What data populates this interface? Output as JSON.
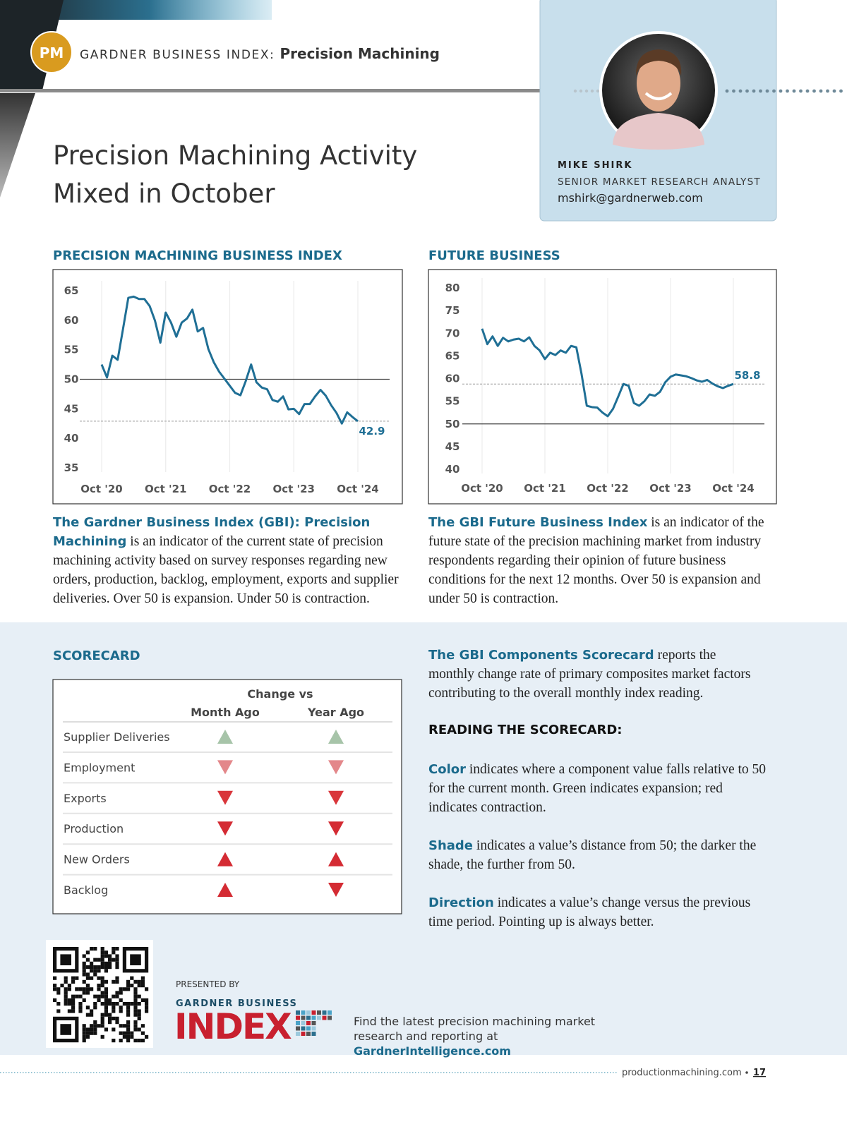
{
  "header": {
    "badge": "PM",
    "series_label": "GARDNER BUSINESS INDEX:",
    "topic": "Precision Machining"
  },
  "title": "Precision Machining Activity Mixed in October",
  "author": {
    "name": "MIKE SHIRK",
    "role": "SENIOR MARKET RESEARCH ANALYST",
    "email": "mshirk@gardnerweb.com"
  },
  "chart_data": [
    {
      "type": "line",
      "title": "PRECISION MACHINING BUSINESS INDEX",
      "categories": [
        "Oct '20",
        null,
        null,
        null,
        null,
        null,
        null,
        null,
        null,
        null,
        null,
        null,
        "Oct '21",
        null,
        null,
        null,
        null,
        null,
        null,
        null,
        null,
        null,
        null,
        null,
        "Oct '22",
        null,
        null,
        null,
        null,
        null,
        null,
        null,
        null,
        null,
        null,
        null,
        "Oct '23",
        null,
        null,
        null,
        null,
        null,
        null,
        null,
        null,
        null,
        null,
        null,
        "Oct '24"
      ],
      "series": [
        {
          "color": "#1f6f95",
          "values": [
            52.5,
            50.3,
            54,
            53.3,
            58.5,
            63.8,
            64,
            63.6,
            63.6,
            62.4,
            59.9,
            56.2,
            61.3,
            59.6,
            57.2,
            59.6,
            60.3,
            61.8,
            58.1,
            58.7,
            55.1,
            52.9,
            51.3,
            50.1,
            48.9,
            47.7,
            47.3,
            49.7,
            52.5,
            49.5,
            48.6,
            48.3,
            46.5,
            46.2,
            47.1,
            44.9,
            45,
            44.1,
            45.8,
            45.8,
            47.1,
            48.2,
            47.2,
            45.6,
            44.3,
            42.5,
            44.4,
            43.6,
            42.9
          ]
        }
      ],
      "ylim": [
        35,
        65
      ],
      "yticks": [
        35,
        40,
        45,
        50,
        55,
        60,
        65
      ],
      "reference_line": 50,
      "label_last": true,
      "grid": true
    },
    {
      "type": "line",
      "title": "FUTURE BUSINESS",
      "categories": [
        "Oct '20",
        null,
        null,
        null,
        null,
        null,
        null,
        null,
        null,
        null,
        null,
        null,
        "Oct '21",
        null,
        null,
        null,
        null,
        null,
        null,
        null,
        null,
        null,
        null,
        null,
        "Oct '22",
        null,
        null,
        null,
        null,
        null,
        null,
        null,
        null,
        null,
        null,
        null,
        "Oct '23",
        null,
        null,
        null,
        null,
        null,
        null,
        null,
        null,
        null,
        null,
        null,
        "Oct '24"
      ],
      "series": [
        {
          "color": "#1f6f95",
          "values": [
            71,
            67.6,
            69.3,
            67.2,
            69,
            68.2,
            68.6,
            68.8,
            68.2,
            69.1,
            67.2,
            66.2,
            64.3,
            65.7,
            65.2,
            66.2,
            65.7,
            67.2,
            66.9,
            61,
            54,
            53.7,
            53.6,
            52.5,
            51.7,
            53.3,
            56,
            58.8,
            58.4,
            54.6,
            54,
            55,
            56.5,
            56.2,
            57.1,
            59.2,
            60.4,
            60.9,
            60.7,
            60.5,
            60.1,
            59.6,
            59.3,
            59.7,
            58.9,
            58.3,
            57.9,
            58.4,
            58.8
          ]
        }
      ],
      "ylim": [
        40,
        80
      ],
      "yticks": [
        40,
        45,
        50,
        55,
        60,
        65,
        70,
        75,
        80
      ],
      "reference_line": 50,
      "label_last": true,
      "grid": true
    }
  ],
  "descriptions": [
    {
      "lead": "The Gardner Business Index (GBI): Precision Machining",
      "text": "is an indicator of the current state of precision machining activity based on survey responses regarding new orders, production, backlog, employment, exports and supplier deliveries. Over 50 is expansion. Under 50 is contraction."
    },
    {
      "lead": "The GBI Future Business Index",
      "text": "is an indicator of the future state of the precision machining market from industry respondents regarding their opinion of future business conditions for the next 12 months. Over 50 is expansion and under 50 is contraction."
    }
  ],
  "scorecard": {
    "title": "SCORECARD",
    "group_header": "Change vs",
    "columns": [
      "Month Ago",
      "Year Ago"
    ],
    "rows": [
      {
        "name": "Supplier Deliveries",
        "cells": [
          {
            "direction": "up",
            "color": "#a7c4a9"
          },
          {
            "direction": "up",
            "color": "#a7c4a9"
          }
        ]
      },
      {
        "name": "Employment",
        "cells": [
          {
            "direction": "down",
            "color": "#e3878a"
          },
          {
            "direction": "down",
            "color": "#e3878a"
          }
        ]
      },
      {
        "name": "Exports",
        "cells": [
          {
            "direction": "down",
            "color": "#d9363b"
          },
          {
            "direction": "down",
            "color": "#d9363b"
          }
        ]
      },
      {
        "name": "Production",
        "cells": [
          {
            "direction": "down",
            "color": "#d42b33"
          },
          {
            "direction": "down",
            "color": "#d42b33"
          }
        ]
      },
      {
        "name": "New Orders",
        "cells": [
          {
            "direction": "up",
            "color": "#d42b33"
          },
          {
            "direction": "up",
            "color": "#d42b33"
          }
        ]
      },
      {
        "name": "Backlog",
        "cells": [
          {
            "direction": "up",
            "color": "#d42b33"
          },
          {
            "direction": "down",
            "color": "#d42b33"
          }
        ]
      }
    ]
  },
  "scorecard_notes": {
    "intro": {
      "lead": "The GBI Components Scorecard",
      "text": "reports the monthly change rate of primary composites market factors contributing to the overall monthly index reading."
    },
    "heading": "READING THE SCORECARD:",
    "items": [
      {
        "lead": "Color",
        "text": "indicates where a component value falls relative to 50 for the current month. Green indicates expansion; red indicates contraction."
      },
      {
        "lead": "Shade",
        "text": "indicates a value’s distance from 50; the darker the shade, the further from 50."
      },
      {
        "lead": "Direction",
        "text": "indicates a value’s change versus the previous time period. Pointing up is always better."
      }
    ]
  },
  "logo": {
    "presented_by": "PRESENTED BY",
    "line1": "GARDNER BUSINESS",
    "line2": "INDEX"
  },
  "cta": {
    "text": "Find the latest precision machining market research and reporting at",
    "link": "GardnerIntelligence.com"
  },
  "footer": {
    "site": "productionmachining.com",
    "page": "17"
  }
}
